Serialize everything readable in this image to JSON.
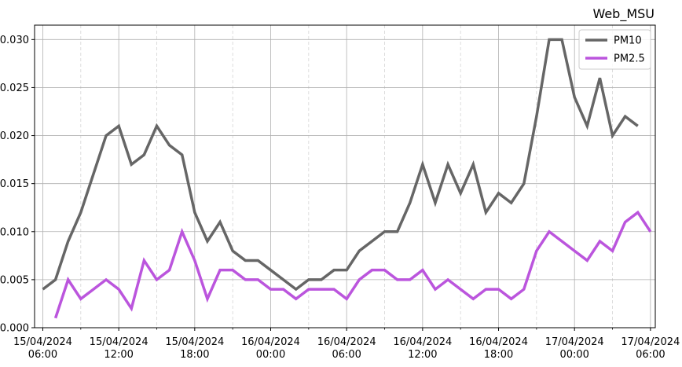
{
  "chart_data": {
    "type": "line",
    "title": "Web_MSU",
    "xlabel": "",
    "ylabel": "",
    "grid": true,
    "legend_position": "top-right",
    "x_start": "15/04/2024 06:00",
    "x_step_hours": 1,
    "xlim": [
      "15/04/2024 06:00",
      "17/04/2024 06:00"
    ],
    "ylim": [
      0.0,
      0.0315
    ],
    "y_ticks": [
      0.0,
      0.005,
      0.01,
      0.015,
      0.02,
      0.025,
      0.03
    ],
    "y_tick_labels": [
      "0.000",
      "0.005",
      "0.010",
      "0.015",
      "0.020",
      "0.025",
      "0.030"
    ],
    "x_ticks": [
      {
        "label_date": "15/04/2024",
        "label_time": "06:00"
      },
      {
        "label_date": "15/04/2024",
        "label_time": "12:00"
      },
      {
        "label_date": "15/04/2024",
        "label_time": "18:00"
      },
      {
        "label_date": "16/04/2024",
        "label_time": "00:00"
      },
      {
        "label_date": "16/04/2024",
        "label_time": "06:00"
      },
      {
        "label_date": "16/04/2024",
        "label_time": "12:00"
      },
      {
        "label_date": "16/04/2024",
        "label_time": "18:00"
      },
      {
        "label_date": "17/04/2024",
        "label_time": "00:00"
      },
      {
        "label_date": "17/04/2024",
        "label_time": "06:00"
      }
    ],
    "series": [
      {
        "name": "PM10",
        "color": "#666666",
        "x": [
          "15/04/2024 06:00",
          "15/04/2024 07:00",
          "15/04/2024 08:00",
          "15/04/2024 09:00",
          "15/04/2024 10:00",
          "15/04/2024 11:00",
          "15/04/2024 12:00",
          "15/04/2024 13:00",
          "15/04/2024 14:00",
          "15/04/2024 15:00",
          "15/04/2024 16:00",
          "15/04/2024 17:00",
          "15/04/2024 18:00",
          "15/04/2024 19:00",
          "15/04/2024 20:00",
          "15/04/2024 21:00",
          "15/04/2024 22:00",
          "15/04/2024 23:00",
          "16/04/2024 00:00",
          "16/04/2024 01:00",
          "16/04/2024 02:00",
          "16/04/2024 03:00",
          "16/04/2024 04:00",
          "16/04/2024 05:00",
          "16/04/2024 06:00",
          "16/04/2024 07:00",
          "16/04/2024 08:00",
          "16/04/2024 09:00",
          "16/04/2024 10:00",
          "16/04/2024 11:00",
          "16/04/2024 12:00",
          "16/04/2024 13:00",
          "16/04/2024 14:00",
          "16/04/2024 15:00",
          "16/04/2024 16:00",
          "16/04/2024 17:00",
          "16/04/2024 18:00",
          "16/04/2024 19:00",
          "16/04/2024 20:00",
          "16/04/2024 21:00",
          "16/04/2024 22:00",
          "16/04/2024 23:00",
          "17/04/2024 00:00",
          "17/04/2024 01:00",
          "17/04/2024 02:00",
          "17/04/2024 03:00",
          "17/04/2024 04:00",
          "17/04/2024 05:00"
        ],
        "values": [
          0.004,
          0.005,
          0.009,
          0.012,
          0.016,
          0.02,
          0.021,
          0.017,
          0.018,
          0.021,
          0.019,
          0.018,
          0.012,
          0.009,
          0.011,
          0.008,
          0.007,
          0.007,
          0.006,
          0.005,
          0.004,
          0.005,
          0.005,
          0.006,
          0.006,
          0.008,
          0.009,
          0.01,
          0.01,
          0.013,
          0.017,
          0.013,
          0.017,
          0.014,
          0.017,
          0.012,
          0.014,
          0.013,
          0.015,
          0.022,
          0.03,
          0.03,
          0.024,
          0.021,
          0.026,
          0.02,
          0.022,
          0.021
        ]
      },
      {
        "name": "PM2.5",
        "color": "#bb55dd",
        "x": [
          "15/04/2024 07:00",
          "15/04/2024 08:00",
          "15/04/2024 09:00",
          "15/04/2024 10:00",
          "15/04/2024 11:00",
          "15/04/2024 12:00",
          "15/04/2024 13:00",
          "15/04/2024 14:00",
          "15/04/2024 15:00",
          "15/04/2024 16:00",
          "15/04/2024 17:00",
          "15/04/2024 18:00",
          "15/04/2024 19:00",
          "15/04/2024 20:00",
          "15/04/2024 21:00",
          "15/04/2024 22:00",
          "15/04/2024 23:00",
          "16/04/2024 00:00",
          "16/04/2024 01:00",
          "16/04/2024 02:00",
          "16/04/2024 03:00",
          "16/04/2024 04:00",
          "16/04/2024 05:00",
          "16/04/2024 06:00",
          "16/04/2024 07:00",
          "16/04/2024 08:00",
          "16/04/2024 09:00",
          "16/04/2024 10:00",
          "16/04/2024 11:00",
          "16/04/2024 12:00",
          "16/04/2024 13:00",
          "16/04/2024 14:00",
          "16/04/2024 15:00",
          "16/04/2024 16:00",
          "16/04/2024 17:00",
          "16/04/2024 18:00",
          "16/04/2024 19:00",
          "16/04/2024 20:00",
          "16/04/2024 21:00",
          "16/04/2024 22:00",
          "16/04/2024 23:00",
          "17/04/2024 00:00",
          "17/04/2024 01:00",
          "17/04/2024 02:00",
          "17/04/2024 03:00",
          "17/04/2024 04:00",
          "17/04/2024 05:00",
          "17/04/2024 06:00"
        ],
        "values": [
          0.001,
          0.005,
          0.003,
          0.004,
          0.005,
          0.004,
          0.002,
          0.007,
          0.005,
          0.006,
          0.01,
          0.007,
          0.003,
          0.006,
          0.006,
          0.005,
          0.005,
          0.004,
          0.004,
          0.003,
          0.004,
          0.004,
          0.004,
          0.003,
          0.005,
          0.006,
          0.006,
          0.005,
          0.005,
          0.006,
          0.004,
          0.005,
          0.004,
          0.003,
          0.004,
          0.004,
          0.003,
          0.004,
          0.008,
          0.01,
          0.009,
          0.008,
          0.007,
          0.009,
          0.008,
          0.011,
          0.012,
          0.01
        ]
      }
    ]
  }
}
